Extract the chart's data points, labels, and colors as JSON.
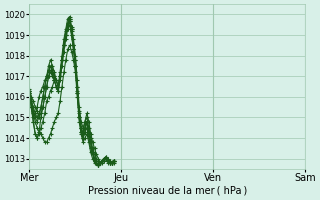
{
  "title": "",
  "xlabel": "Pression niveau de la mer ( hPa )",
  "ylabel": "",
  "bg_color": "#d8f0e8",
  "grid_color": "#a0c8b0",
  "line_color": "#1a5c1a",
  "ylim": [
    1012.5,
    1020.5
  ],
  "yticks": [
    1013,
    1014,
    1015,
    1016,
    1017,
    1018,
    1019,
    1020
  ],
  "xtick_labels": [
    "Mer",
    "Jeu",
    "Ven",
    "Sam"
  ],
  "xtick_positions": [
    0,
    48,
    96,
    144
  ],
  "series": [
    [
      1016.3,
      1015.8,
      1015.5,
      1015.2,
      1015.0,
      1015.2,
      1015.5,
      1016.0,
      1016.5,
      1017.0,
      1017.3,
      1017.5,
      1017.2,
      1016.8,
      1016.5,
      1016.3,
      1017.0,
      1017.8,
      1018.5,
      1019.2,
      1019.6,
      1019.8,
      1019.3,
      1018.5,
      1017.5,
      1016.2,
      1015.0,
      1014.5,
      1014.2,
      1014.8,
      1015.2,
      1014.8,
      1014.2,
      1013.8,
      1013.5,
      1013.2,
      1013.0,
      1012.8,
      1012.9,
      1013.0,
      1013.1,
      1012.8,
      1012.9,
      1012.8,
      1012.9
    ],
    [
      1016.2,
      1015.5,
      1014.8,
      1014.2,
      1014.0,
      1014.2,
      1014.5,
      1014.8,
      1015.2,
      1015.8,
      1016.0,
      1016.3,
      1016.5,
      1016.8,
      1016.5,
      1016.3,
      1017.0,
      1017.8,
      1018.5,
      1019.0,
      1019.5,
      1019.7,
      1019.3,
      1018.5,
      1017.8,
      1016.5,
      1015.2,
      1014.5,
      1014.2,
      1014.5,
      1014.8,
      1014.2,
      1013.8,
      1013.3,
      1013.0,
      1012.8,
      1012.7,
      1012.8,
      1012.9,
      1013.0,
      1013.0,
      1012.9,
      1012.8,
      1012.8,
      1012.8
    ],
    [
      1016.2,
      1015.5,
      1014.8,
      1014.2,
      1014.0,
      1014.3,
      1015.0,
      1015.5,
      1016.0,
      1016.5,
      1017.0,
      1017.3,
      1017.2,
      1017.0,
      1016.8,
      1016.5,
      1017.2,
      1018.0,
      1018.8,
      1019.3,
      1019.8,
      1019.9,
      1019.4,
      1018.8,
      1018.0,
      1016.8,
      1015.5,
      1014.8,
      1014.5,
      1014.8,
      1015.0,
      1014.5,
      1014.0,
      1013.5,
      1013.2,
      1013.0,
      1012.9,
      1012.8,
      1012.9,
      1013.0,
      1013.0,
      1012.9,
      1012.8,
      1012.8,
      1012.9
    ],
    [
      1016.3,
      1015.8,
      1015.2,
      1014.8,
      1014.5,
      1014.3,
      1014.2,
      1014.0,
      1013.8,
      1013.8,
      1014.0,
      1014.2,
      1014.5,
      1014.8,
      1015.0,
      1015.2,
      1015.8,
      1016.5,
      1017.2,
      1017.8,
      1018.3,
      1018.5,
      1018.2,
      1017.8,
      1017.2,
      1016.0,
      1014.8,
      1014.2,
      1013.8,
      1014.0,
      1014.2,
      1013.8,
      1013.3,
      1013.0,
      1012.8,
      1012.8,
      1012.7,
      1012.8,
      1012.8,
      1012.9,
      1013.0,
      1012.9,
      1012.8,
      1012.8,
      1012.9
    ],
    [
      1016.4,
      1016.0,
      1015.8,
      1015.5,
      1015.3,
      1015.0,
      1015.2,
      1015.5,
      1016.0,
      1016.5,
      1017.0,
      1017.2,
      1017.0,
      1016.8,
      1016.5,
      1016.3,
      1016.8,
      1017.5,
      1018.2,
      1018.8,
      1019.3,
      1019.5,
      1019.0,
      1018.3,
      1017.5,
      1016.2,
      1015.0,
      1014.3,
      1014.0,
      1014.3,
      1014.5,
      1014.0,
      1013.5,
      1013.2,
      1012.9,
      1012.8,
      1012.7,
      1012.8,
      1012.9,
      1013.0,
      1013.0,
      1012.9,
      1012.8,
      1012.8,
      1012.9
    ],
    [
      1016.3,
      1015.8,
      1015.3,
      1015.0,
      1014.8,
      1015.0,
      1015.5,
      1016.0,
      1016.5,
      1017.0,
      1017.5,
      1017.8,
      1017.5,
      1017.2,
      1016.8,
      1016.5,
      1017.0,
      1017.8,
      1018.5,
      1019.0,
      1019.5,
      1019.8,
      1019.2,
      1018.5,
      1017.8,
      1016.5,
      1015.3,
      1014.5,
      1014.2,
      1014.5,
      1014.8,
      1014.3,
      1013.8,
      1013.3,
      1013.0,
      1012.8,
      1012.7,
      1012.8,
      1012.9,
      1013.0,
      1013.1,
      1013.0,
      1012.9,
      1012.8,
      1012.9
    ],
    [
      1016.2,
      1015.5,
      1015.0,
      1015.2,
      1015.5,
      1016.0,
      1016.3,
      1016.5,
      1016.8,
      1017.0,
      1017.2,
      1017.5,
      1017.3,
      1017.0,
      1016.8,
      1016.5,
      1017.0,
      1017.8,
      1018.5,
      1019.0,
      1019.5,
      1019.7,
      1019.0,
      1018.3,
      1017.5,
      1016.3,
      1015.0,
      1014.3,
      1014.0,
      1014.3,
      1014.8,
      1014.2,
      1013.8,
      1013.3,
      1013.0,
      1012.8,
      1012.7,
      1012.8,
      1012.9,
      1013.0,
      1013.0,
      1012.9,
      1012.8,
      1012.8,
      1012.9
    ]
  ]
}
